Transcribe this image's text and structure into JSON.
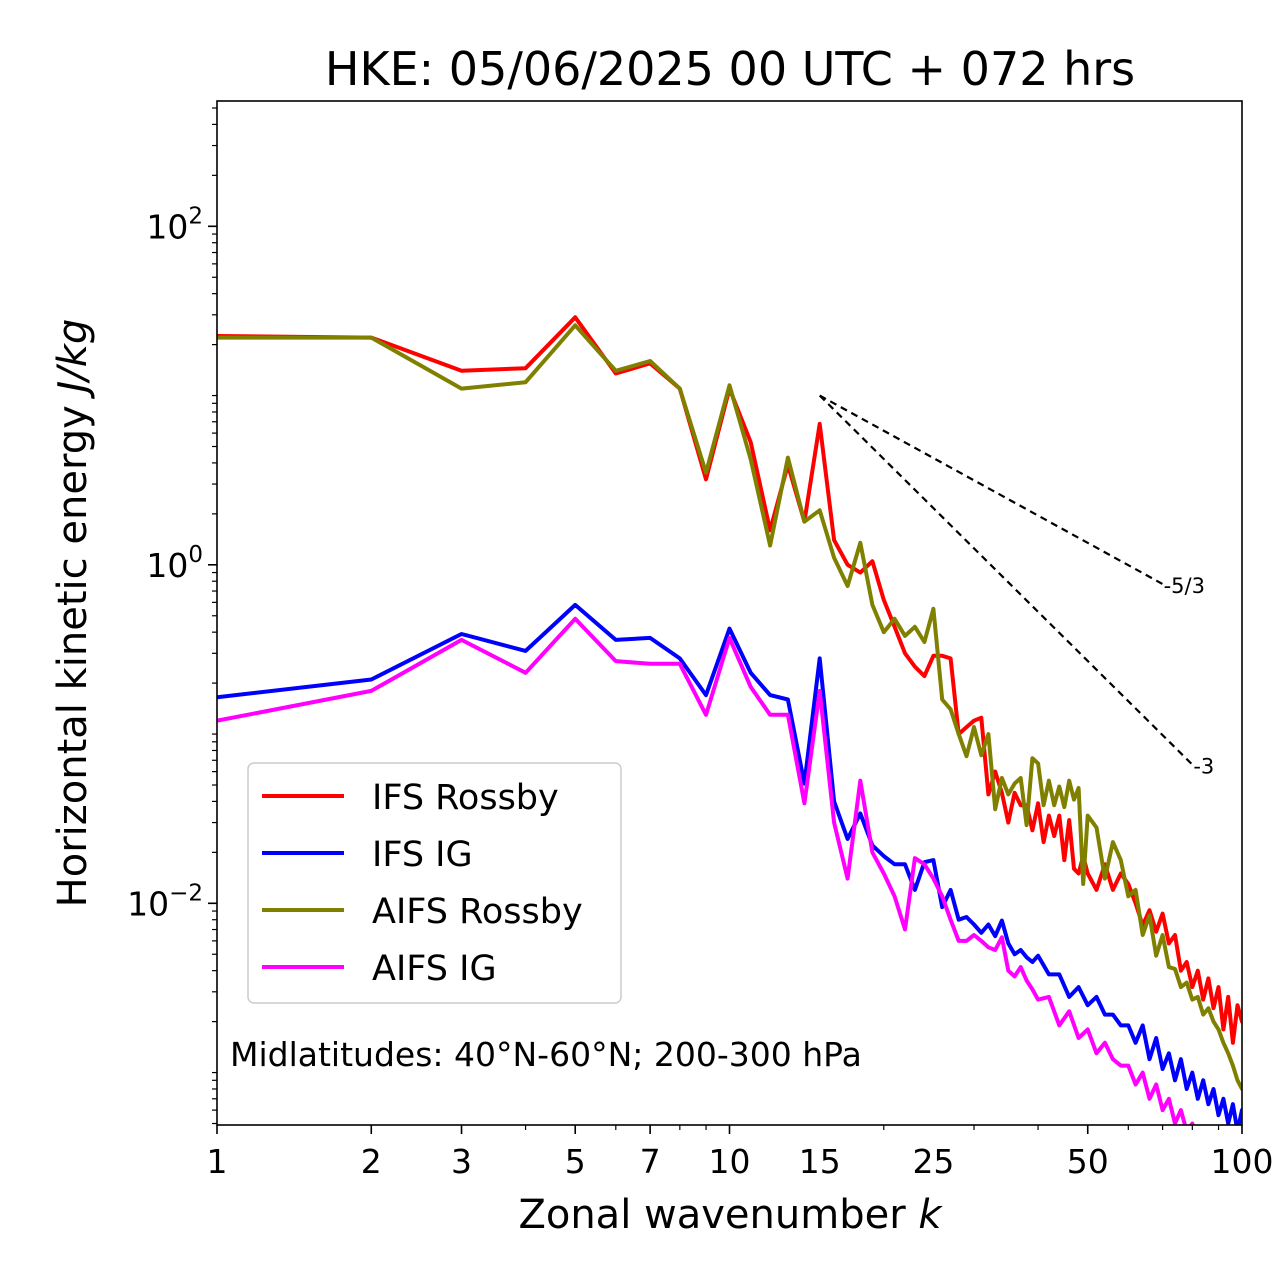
{
  "chart_data": {
    "type": "line",
    "title": "HKE: 05/06/2025 00 UTC + 072 hrs",
    "xlabel": "Zonal wavenumber",
    "xlabel_var": "k",
    "ylabel": "Horizontal kinetic energy",
    "ylabel_unit": "J/kg",
    "x_scale": "log",
    "y_scale": "log",
    "xlim": [
      1,
      100
    ],
    "ylim": [
      0.00049,
      550
    ],
    "x_ticks": [
      1,
      2,
      3,
      5,
      7,
      10,
      15,
      25,
      50,
      100
    ],
    "x_tick_labels": [
      "1",
      "2",
      "3",
      "5",
      "7",
      "10",
      "15",
      "25",
      "50",
      "100"
    ],
    "y_ticks": [
      {
        "value": 100,
        "base": "10",
        "exp": "2"
      },
      {
        "value": 1,
        "base": "10",
        "exp": "0"
      },
      {
        "value": 0.01,
        "base": "10",
        "exp": "−2"
      }
    ],
    "annotation": "Midlatitudes: 40°N-60°N; 200-300 hPa",
    "legend_position": "lower-left",
    "reference_lines": [
      {
        "label": "-5/3",
        "x": [
          15,
          70
        ],
        "y": [
          10.0,
          0.77
        ],
        "color": "#000000",
        "style": "dashed"
      },
      {
        "label": "-3",
        "x": [
          15,
          80
        ],
        "y": [
          10.0,
          0.066
        ],
        "color": "#000000",
        "style": "dashed"
      }
    ],
    "series": [
      {
        "name": "IFS Rossby",
        "color": "#ff0000",
        "x": [
          1,
          2,
          3,
          4,
          5,
          6,
          7,
          8,
          9,
          10,
          11,
          12,
          13,
          14,
          15,
          16,
          17,
          18,
          19,
          20,
          21,
          22,
          23,
          24,
          25,
          26,
          27,
          28,
          29,
          30,
          31,
          32,
          33,
          34,
          35,
          36,
          37,
          38,
          39,
          40,
          41,
          42,
          43,
          44,
          45,
          46,
          47,
          48,
          49,
          50,
          52,
          54,
          56,
          58,
          60,
          62,
          64,
          66,
          68,
          70,
          72,
          74,
          76,
          78,
          80,
          82,
          84,
          86,
          88,
          90,
          92,
          94,
          96,
          98,
          100
        ],
        "y": [
          22.5,
          22,
          14,
          14.5,
          29,
          13.5,
          15.5,
          11,
          3.2,
          11,
          5.3,
          1.6,
          3.9,
          1.8,
          6.8,
          1.4,
          1.0,
          0.9,
          1.05,
          0.62,
          0.43,
          0.3,
          0.25,
          0.22,
          0.29,
          0.29,
          0.28,
          0.1,
          0.11,
          0.12,
          0.125,
          0.044,
          0.06,
          0.045,
          0.03,
          0.045,
          0.038,
          0.038,
          0.027,
          0.039,
          0.023,
          0.033,
          0.025,
          0.033,
          0.018,
          0.031,
          0.016,
          0.015,
          0.019,
          0.015,
          0.012,
          0.017,
          0.012,
          0.015,
          0.013,
          0.01,
          0.0074,
          0.0091,
          0.0068,
          0.0087,
          0.0058,
          0.0065,
          0.004,
          0.0045,
          0.0032,
          0.004,
          0.0027,
          0.0036,
          0.0024,
          0.0032,
          0.0018,
          0.0028,
          0.0015,
          0.0025,
          0.002
        ]
      },
      {
        "name": "IFS IG",
        "color": "#0000ff",
        "x": [
          1,
          2,
          3,
          4,
          5,
          6,
          7,
          8,
          9,
          10,
          11,
          12,
          13,
          14,
          15,
          16,
          17,
          18,
          19,
          20,
          21,
          22,
          23,
          24,
          25,
          26,
          27,
          28,
          29,
          30,
          31,
          32,
          33,
          34,
          35,
          36,
          37,
          38,
          39,
          40,
          42,
          44,
          46,
          48,
          50,
          52,
          54,
          56,
          58,
          60,
          62,
          64,
          66,
          68,
          70,
          72,
          74,
          76,
          78,
          80,
          82,
          84,
          86,
          88,
          90,
          92,
          94,
          96,
          98,
          100
        ],
        "y": [
          0.165,
          0.21,
          0.39,
          0.31,
          0.58,
          0.36,
          0.37,
          0.28,
          0.17,
          0.42,
          0.23,
          0.17,
          0.16,
          0.051,
          0.28,
          0.04,
          0.024,
          0.034,
          0.022,
          0.019,
          0.017,
          0.017,
          0.012,
          0.0175,
          0.018,
          0.0095,
          0.012,
          0.008,
          0.0083,
          0.0075,
          0.0067,
          0.0075,
          0.0064,
          0.0079,
          0.0058,
          0.005,
          0.0053,
          0.0048,
          0.0045,
          0.0049,
          0.0038,
          0.0038,
          0.0028,
          0.0032,
          0.0025,
          0.0028,
          0.0022,
          0.0022,
          0.0019,
          0.0019,
          0.0015,
          0.0019,
          0.0012,
          0.0016,
          0.00105,
          0.0013,
          0.0009,
          0.0012,
          0.0008,
          0.001,
          0.0007,
          0.0009,
          0.00065,
          0.0008,
          0.00056,
          0.0007,
          0.0005,
          0.00065,
          0.00045,
          0.0006
        ]
      },
      {
        "name": "AIFS Rossby",
        "color": "#808000",
        "x": [
          1,
          2,
          3,
          4,
          5,
          6,
          7,
          8,
          9,
          10,
          11,
          12,
          13,
          14,
          15,
          16,
          17,
          18,
          19,
          20,
          21,
          22,
          23,
          24,
          25,
          26,
          27,
          28,
          29,
          30,
          31,
          32,
          33,
          34,
          35,
          36,
          37,
          38,
          39,
          40,
          41,
          42,
          43,
          44,
          45,
          46,
          47,
          48,
          49,
          50,
          52,
          54,
          56,
          58,
          60,
          62,
          64,
          66,
          68,
          70,
          72,
          74,
          76,
          78,
          80,
          82,
          84,
          86,
          88,
          90,
          92,
          94,
          96,
          98,
          100
        ],
        "y": [
          22,
          22,
          11,
          12,
          26,
          14,
          16,
          11,
          3.5,
          11.5,
          4.2,
          1.3,
          4.3,
          1.8,
          2.1,
          1.1,
          0.75,
          1.35,
          0.58,
          0.4,
          0.48,
          0.38,
          0.43,
          0.35,
          0.55,
          0.16,
          0.14,
          0.1,
          0.074,
          0.11,
          0.075,
          0.1,
          0.036,
          0.055,
          0.044,
          0.051,
          0.055,
          0.029,
          0.072,
          0.067,
          0.038,
          0.053,
          0.038,
          0.049,
          0.037,
          0.053,
          0.041,
          0.048,
          0.013,
          0.033,
          0.028,
          0.014,
          0.023,
          0.018,
          0.011,
          0.012,
          0.0065,
          0.0085,
          0.0049,
          0.0065,
          0.0042,
          0.0041,
          0.0032,
          0.0034,
          0.0027,
          0.0028,
          0.0022,
          0.0024,
          0.002,
          0.0018,
          0.0015,
          0.0013,
          0.0011,
          0.0009,
          0.0008
        ]
      },
      {
        "name": "AIFS IG",
        "color": "#ff00ff",
        "x": [
          1,
          2,
          3,
          4,
          5,
          6,
          7,
          8,
          9,
          10,
          11,
          12,
          13,
          14,
          15,
          16,
          17,
          18,
          19,
          20,
          21,
          22,
          23,
          24,
          25,
          26,
          27,
          28,
          29,
          30,
          31,
          32,
          33,
          34,
          35,
          36,
          37,
          38,
          39,
          40,
          42,
          44,
          46,
          48,
          50,
          52,
          54,
          56,
          58,
          60,
          62,
          64,
          66,
          68,
          70,
          72,
          74,
          76,
          78,
          80,
          82,
          84,
          86,
          88,
          90,
          92,
          94,
          96,
          98,
          100
        ],
        "y": [
          0.12,
          0.18,
          0.36,
          0.23,
          0.48,
          0.27,
          0.26,
          0.26,
          0.13,
          0.37,
          0.19,
          0.13,
          0.13,
          0.039,
          0.18,
          0.03,
          0.014,
          0.053,
          0.02,
          0.015,
          0.011,
          0.007,
          0.0185,
          0.017,
          0.014,
          0.011,
          0.008,
          0.006,
          0.006,
          0.0065,
          0.006,
          0.0055,
          0.0053,
          0.0063,
          0.004,
          0.0037,
          0.0042,
          0.0035,
          0.0031,
          0.0027,
          0.0028,
          0.0019,
          0.0023,
          0.0016,
          0.0018,
          0.0013,
          0.0015,
          0.0012,
          0.0011,
          0.0011,
          0.00085,
          0.001,
          0.0007,
          0.00085,
          0.0006,
          0.0007,
          0.0005,
          0.0006,
          0.00045,
          0.0005,
          0.0004,
          0.00045,
          0.00035,
          0.0004,
          0.0003,
          0.00035,
          0.00028,
          0.0003,
          0.00025,
          0.00027
        ]
      }
    ]
  }
}
